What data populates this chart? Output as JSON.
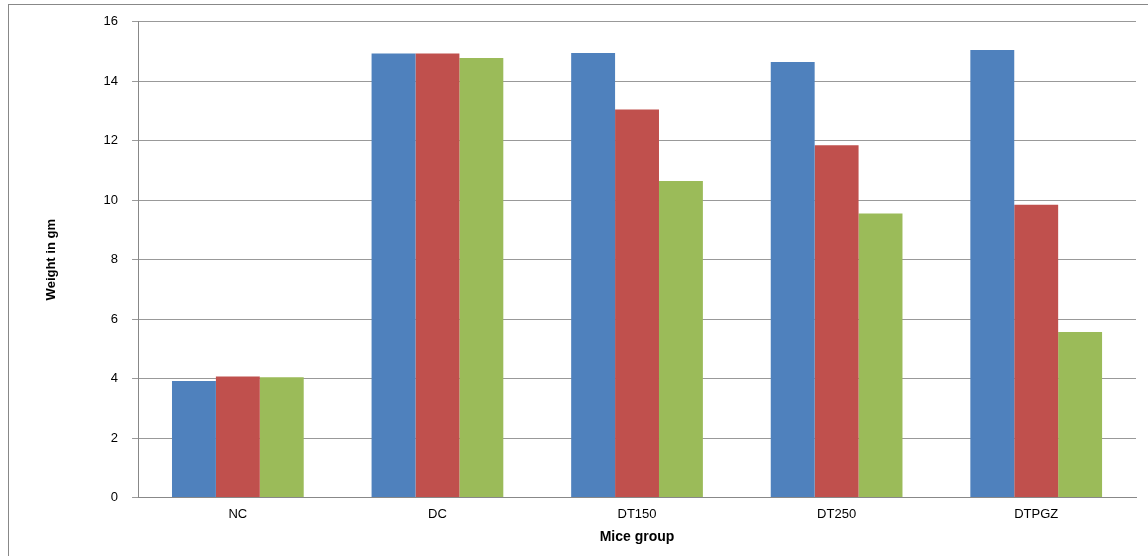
{
  "chart_data": {
    "type": "bar",
    "xlabel": "Mice group",
    "ylabel": "Weight in gm",
    "categories": [
      "NC",
      "DC",
      "DT150",
      "DT250",
      "DTPGZ"
    ],
    "series": [
      {
        "color": "#4f81bd",
        "values": [
          3.92,
          14.93,
          14.95,
          14.65,
          15.05
        ]
      },
      {
        "color": "#c0504d",
        "values": [
          4.07,
          14.93,
          13.05,
          11.85,
          9.85
        ]
      },
      {
        "color": "#9bbb59",
        "values": [
          4.05,
          14.78,
          10.65,
          9.55,
          5.57
        ]
      }
    ],
    "ylim": [
      0,
      16
    ],
    "yticks": [
      0,
      2,
      4,
      6,
      8,
      10,
      12,
      14,
      16
    ],
    "grid": "y",
    "legend": false
  }
}
